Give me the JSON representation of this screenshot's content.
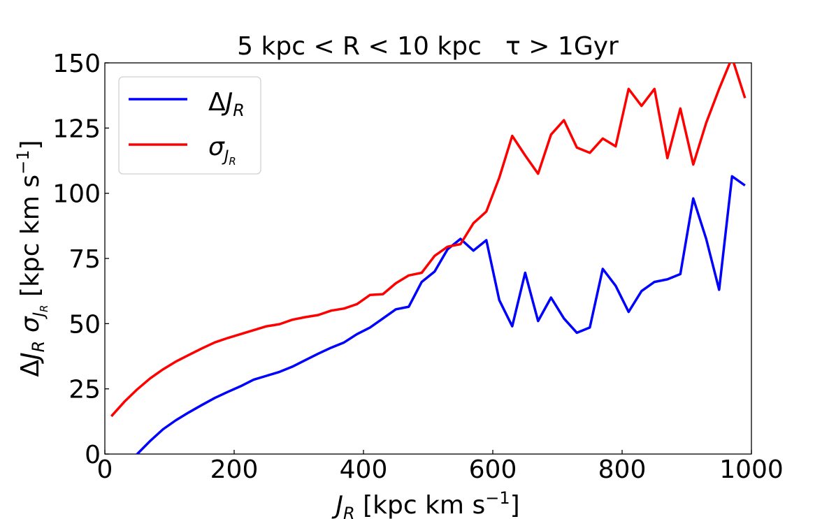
{
  "chart_data": {
    "type": "line",
    "title": "5 kpc < R < 10 kpc   τ > 1Gyr",
    "xlabel": "J_R [kpc km s^-1]",
    "ylabel": "ΔJ_R  σ_J_R  [kpc km s^-1]",
    "xlim": [
      0,
      1000
    ],
    "ylim": [
      0,
      150
    ],
    "xticks": [
      0,
      200,
      400,
      600,
      800,
      1000
    ],
    "yticks": [
      0,
      25,
      50,
      75,
      100,
      125,
      150
    ],
    "legend_position": "upper-left",
    "grid": false,
    "x": [
      10,
      30,
      50,
      70,
      90,
      110,
      130,
      150,
      170,
      190,
      210,
      230,
      250,
      270,
      290,
      310,
      330,
      350,
      370,
      390,
      410,
      430,
      450,
      470,
      490,
      510,
      530,
      550,
      570,
      590,
      610,
      630,
      650,
      670,
      690,
      710,
      730,
      750,
      770,
      790,
      810,
      830,
      850,
      870,
      890,
      910,
      930,
      950,
      970,
      990
    ],
    "series": [
      {
        "name": "ΔJ_R",
        "color": "#0000ff",
        "values": [
          -12,
          -5,
          0,
          5,
          9.5,
          13,
          16,
          18.8,
          21.5,
          23.8,
          26,
          28.5,
          30,
          31.5,
          33.5,
          36,
          38.5,
          40.8,
          42.8,
          46,
          48.5,
          52,
          55.5,
          56.5,
          66,
          70,
          78.5,
          82.5,
          78,
          82,
          59,
          49,
          69.5,
          51,
          60,
          52,
          46.5,
          48.5,
          71,
          64.5,
          54.5,
          62.5,
          66,
          67,
          69,
          98,
          82.5,
          63,
          106.5,
          103
        ]
      },
      {
        "name": "σ_J_R",
        "color": "#ff0000",
        "values": [
          14.5,
          20,
          24.8,
          29,
          32.5,
          35.5,
          38,
          40.5,
          42.8,
          44.5,
          46,
          47.5,
          49,
          49.8,
          51.5,
          52.5,
          53.3,
          55,
          55.8,
          57.5,
          61,
          61.3,
          65.5,
          68.5,
          69.5,
          76,
          79.5,
          80.5,
          88.5,
          93,
          106,
          122,
          114.5,
          107.5,
          122.5,
          128,
          117.5,
          115.5,
          121,
          118,
          140,
          133.5,
          140,
          113.5,
          132.5,
          111,
          127,
          140,
          152,
          136.5
        ]
      }
    ]
  }
}
